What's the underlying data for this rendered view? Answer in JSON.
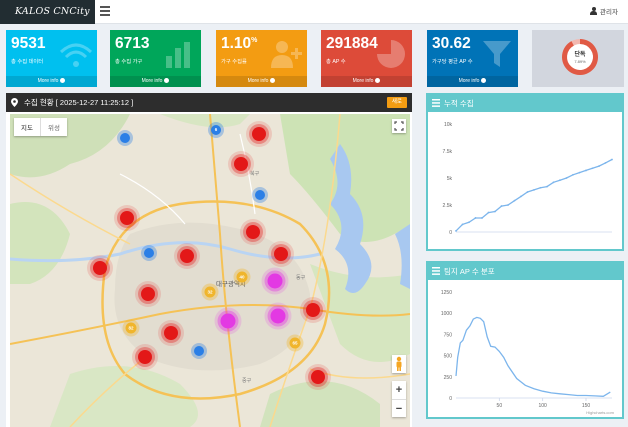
{
  "app": {
    "brand": "KALOS CNCity"
  },
  "header": {
    "user_label": "관리자"
  },
  "stats": [
    {
      "value": "9531",
      "label": "총 수집 데이터",
      "more": "More info",
      "color": "#00c0ef",
      "icon": "wifi-icon"
    },
    {
      "value": "6713",
      "label": "총 수집 가구",
      "more": "More info",
      "color": "#00a65a",
      "icon": "bar-chart-icon"
    },
    {
      "value": "1.10",
      "unit": "%",
      "label": "가구 수집률",
      "more": "More info",
      "color": "#f39c12",
      "icon": "user-plus-icon"
    },
    {
      "value": "291884",
      "label": "총 AP 수",
      "more": "More info",
      "color": "#dd4b39",
      "icon": "pie-chart-icon"
    },
    {
      "value": "30.62",
      "label": "가구당 평균 AP 수",
      "more": "More info",
      "color": "#0073b7",
      "icon": "funnel-icon"
    }
  ],
  "ranking": {
    "label": "단독",
    "percent": "7.89%",
    "fraction": 0.0789
  },
  "map_panel": {
    "title": "수집 현황 [ 2025-12-27 11:25:12 ]",
    "refresh_label": "새로",
    "map_type_map": "지도",
    "map_type_satellite": "위성",
    "zoom_in": "+",
    "zoom_out": "−",
    "place_labels": [
      "대구광역시",
      "중구",
      "동구",
      "북구"
    ],
    "clusters": [
      {
        "color": "blue",
        "count": "6"
      },
      {
        "color": "red",
        "count": ""
      },
      {
        "color": "blue",
        "count": ""
      },
      {
        "color": "red",
        "count": ""
      },
      {
        "color": "blue",
        "count": ""
      },
      {
        "color": "red",
        "count": ""
      },
      {
        "color": "red",
        "count": ""
      },
      {
        "color": "blue",
        "count": ""
      },
      {
        "color": "red",
        "count": ""
      },
      {
        "color": "red",
        "count": ""
      },
      {
        "color": "yellow",
        "count": "40"
      },
      {
        "color": "red",
        "count": ""
      },
      {
        "color": "pink",
        "count": ""
      },
      {
        "color": "red",
        "count": ""
      },
      {
        "color": "yellow",
        "count": "32"
      },
      {
        "color": "pink",
        "count": ""
      },
      {
        "color": "pink",
        "count": ""
      },
      {
        "color": "red",
        "count": ""
      },
      {
        "color": "red",
        "count": ""
      },
      {
        "color": "yellow",
        "count": "82"
      },
      {
        "color": "blue",
        "count": ""
      },
      {
        "color": "red",
        "count": ""
      },
      {
        "color": "yellow",
        "count": "65"
      },
      {
        "color": "red",
        "count": ""
      }
    ]
  },
  "chart_data": [
    {
      "type": "line",
      "title": "누적 수집",
      "x": [
        0,
        1,
        2,
        3,
        4,
        5,
        6,
        7,
        8,
        9,
        10,
        11,
        12,
        13,
        14,
        15,
        16,
        17,
        18,
        19,
        20,
        21,
        22,
        23,
        24
      ],
      "series": [
        {
          "values": [
            100,
            700,
            900,
            1300,
            1300,
            1800,
            1900,
            2400,
            2500,
            2900,
            3300,
            3700,
            3900,
            4100,
            4200,
            4600,
            4800,
            5000,
            5300,
            5500,
            5700,
            5900,
            6100,
            6400,
            6713
          ]
        }
      ],
      "yticks": [
        "0",
        "2.5k",
        "5k",
        "7.5k",
        "10k"
      ],
      "ylim": [
        0,
        10000
      ],
      "color": "#7cb5ec",
      "grid": false
    },
    {
      "type": "area",
      "title": "팀지 AP 수 분포",
      "x": [
        0,
        2,
        5,
        8,
        12,
        16,
        20,
        24,
        28,
        32,
        36,
        40,
        45,
        50,
        55,
        60,
        70,
        80,
        90,
        100,
        110,
        120,
        130,
        140,
        150,
        160,
        170,
        178
      ],
      "series": [
        {
          "values": [
            260,
            480,
            650,
            680,
            800,
            850,
            930,
            950,
            940,
            900,
            720,
            610,
            600,
            550,
            480,
            380,
            230,
            150,
            110,
            80,
            60,
            50,
            40,
            30,
            30,
            25,
            20,
            70
          ]
        }
      ],
      "xticks": [
        "50",
        "100",
        "150"
      ],
      "yticks": [
        "0",
        "250",
        "500",
        "750",
        "1000",
        "1250"
      ],
      "xlim": [
        0,
        180
      ],
      "ylim": [
        0,
        1250
      ],
      "color": "#7cb5ec",
      "credit": "Highcharts.com"
    }
  ]
}
